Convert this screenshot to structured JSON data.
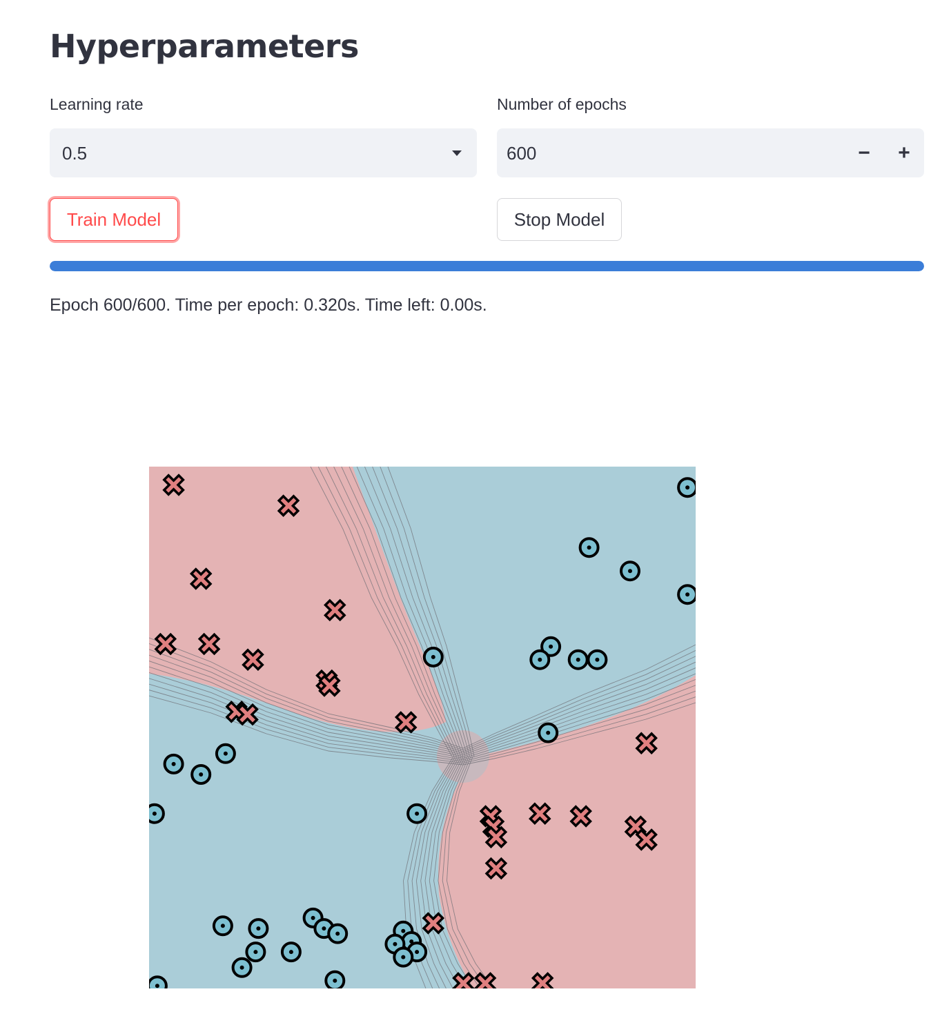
{
  "header": {
    "title": "Hyperparameters"
  },
  "learning_rate": {
    "label": "Learning rate",
    "value": "0.5"
  },
  "epochs": {
    "label": "Number of epochs",
    "value": "600",
    "minus": "−",
    "plus": "+"
  },
  "buttons": {
    "train": "Train Model",
    "stop": "Stop Model"
  },
  "progress": {
    "fraction": 1.0
  },
  "status": {
    "text": "Epoch 600/600. Time per epoch: 0.320s. Time left: 0.00s."
  },
  "colors": {
    "accent": "#ff4b4b",
    "progress": "#3b7dd8",
    "region_red": "#e4b3b4",
    "region_blue": "#aacdd8",
    "marker_red": "#e07f7f",
    "marker_blue": "#7dbfd0"
  },
  "chart_data": {
    "type": "scatter",
    "title": "",
    "xlabel": "",
    "ylabel": "",
    "xlim": [
      -1,
      1
    ],
    "ylim": [
      -1,
      1
    ],
    "grid": false,
    "series": [
      {
        "marker": "x",
        "points": [
          [
            -0.91,
            0.93
          ],
          [
            -0.49,
            0.85
          ],
          [
            -0.81,
            0.57
          ],
          [
            -0.32,
            0.45
          ],
          [
            -0.94,
            0.32
          ],
          [
            -0.78,
            0.32
          ],
          [
            -0.62,
            0.26
          ],
          [
            -0.35,
            0.18
          ],
          [
            -0.34,
            0.16
          ],
          [
            -0.68,
            0.06
          ],
          [
            -0.64,
            0.05
          ],
          [
            -0.06,
            0.02
          ],
          [
            0.82,
            -0.06
          ],
          [
            0.25,
            -0.34
          ],
          [
            0.43,
            -0.33
          ],
          [
            0.58,
            -0.34
          ],
          [
            0.78,
            -0.38
          ],
          [
            0.82,
            -0.43
          ],
          [
            0.26,
            -0.38
          ],
          [
            0.27,
            -0.42
          ],
          [
            0.27,
            -0.54
          ],
          [
            0.04,
            -0.75
          ],
          [
            0.15,
            -0.98
          ],
          [
            0.23,
            -0.98
          ],
          [
            0.44,
            -0.98
          ]
        ]
      },
      {
        "marker": "o",
        "points": [
          [
            0.97,
            0.92
          ],
          [
            0.61,
            0.69
          ],
          [
            0.76,
            0.6
          ],
          [
            0.97,
            0.51
          ],
          [
            0.47,
            0.31
          ],
          [
            0.43,
            0.26
          ],
          [
            0.57,
            0.26
          ],
          [
            0.64,
            0.26
          ],
          [
            0.04,
            0.27
          ],
          [
            0.46,
            -0.02
          ],
          [
            -0.72,
            -0.1
          ],
          [
            -0.91,
            -0.14
          ],
          [
            -0.81,
            -0.18
          ],
          [
            -0.98,
            -0.33
          ],
          [
            -0.02,
            -0.33
          ],
          [
            -0.4,
            -0.73
          ],
          [
            -0.6,
            -0.77
          ],
          [
            -0.73,
            -0.76
          ],
          [
            -0.36,
            -0.77
          ],
          [
            -0.31,
            -0.79
          ],
          [
            -0.07,
            -0.78
          ],
          [
            -0.04,
            -0.82
          ],
          [
            -0.02,
            -0.86
          ],
          [
            -0.1,
            -0.83
          ],
          [
            -0.48,
            -0.86
          ],
          [
            -0.61,
            -0.86
          ],
          [
            -0.66,
            -0.92
          ],
          [
            -0.07,
            -0.88
          ],
          [
            -0.32,
            -0.97
          ],
          [
            -0.97,
            -0.99
          ]
        ]
      }
    ]
  }
}
